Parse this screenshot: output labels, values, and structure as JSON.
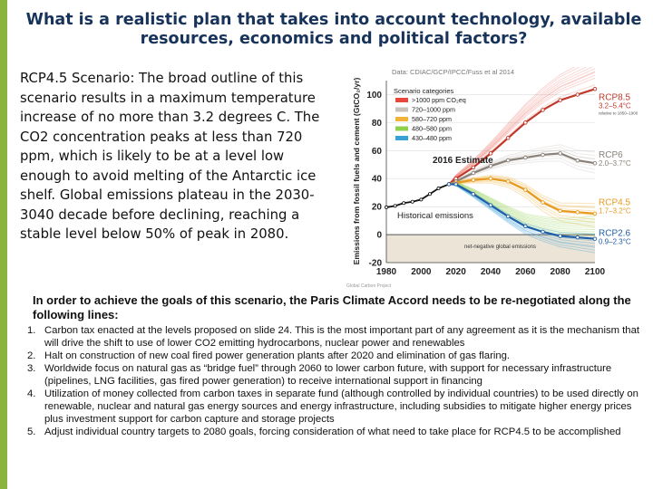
{
  "slide": {
    "title": "What is a realistic plan that takes into account technology, available resources, economics and political factors?",
    "intro": "RCP4.5 Scenario: The broad outline of this scenario results in a maximum temperature increase of no more than 3.2 degrees C.  The CO2 concentration peaks at less than 720 ppm, which is likely to be at a level low enough to avoid melting of the Antarctic ice shelf. Global emissions plateau in the 2030-3040 decade before declining, reaching a stable level below 50% of peak in 2080.",
    "lead": "In order to achieve the goals of this scenario, the Paris Climate Accord needs to be re-negotiated along the following lines:",
    "items": [
      {
        "num": "1.",
        "text": "Carbon tax enacted at the levels proposed on slide 24.  This is the most important part of any agreement as it is the mechanism that will drive the shift to use of lower CO2 emitting hydrocarbons, nuclear power and renewables"
      },
      {
        "num": "2.",
        "text": "Halt on construction of new coal fired power generation plants after 2020 and elimination of gas flaring."
      },
      {
        "num": "3.",
        "text": "Worldwide focus on natural gas as “bridge fuel” through 2060 to lower carbon future, with support  for necessary infrastructure (pipelines, LNG facilities, gas fired power generation) to receive international support in financing"
      },
      {
        "num": "4.",
        "text": "Utilization of money collected from carbon taxes in separate fund (although controlled by individual countries) to be used directly on renewable, nuclear and natural gas energy sources and energy infrastructure, including subsidies to mitigate higher energy prices plus investment support for carbon capture and storage projects"
      },
      {
        "num": "5.",
        "text": "Adjust individual country targets to 2080 goals, forcing consideration of what need to take place for RCP4.5 to be accomplished"
      }
    ]
  },
  "chart_data": {
    "type": "line",
    "source": "Data: CDIAC/GCP/IPCC/Fuss et al 2014",
    "ylabel": "Emissions from fossil fuels and cement (GtCO₂/yr)",
    "xlim": [
      1980,
      2100
    ],
    "ylim": [
      -20,
      110
    ],
    "x_ticks": [
      1980,
      2000,
      2020,
      2040,
      2060,
      2080,
      2100
    ],
    "y_ticks": [
      -20,
      0,
      20,
      40,
      60,
      80,
      100
    ],
    "legend_title": "Scenario categories",
    "legend": [
      {
        "label": ">1000 ppm CO₂eq",
        "color": "#e8473c"
      },
      {
        "label": "720–1000 ppm",
        "color": "#c9c2bc"
      },
      {
        "label": "580–720 ppm",
        "color": "#f2b33d"
      },
      {
        "label": "480–580 ppm",
        "color": "#8fd14f"
      },
      {
        "label": "430–480 ppm",
        "color": "#3aa0d8"
      }
    ],
    "annotations": {
      "estimate": "2016 Estimate",
      "historical": "Historical emissions",
      "negative": "net-negative global emissions",
      "footer": "Global Carbon Project"
    },
    "historical": {
      "x": [
        1980,
        1985,
        1990,
        1995,
        2000,
        2005,
        2010,
        2016
      ],
      "y": [
        19.5,
        20.5,
        22.5,
        23.5,
        25,
        29,
        33,
        36
      ]
    },
    "series": [
      {
        "name": "RCP8.5",
        "range": "3.2–5.4°C",
        "range_note": "relative to 1850–1900",
        "color": "#c0392b",
        "x": [
          2016,
          2020,
          2030,
          2040,
          2050,
          2060,
          2070,
          2080,
          2090,
          2100
        ],
        "y": [
          36,
          40,
          48,
          58,
          69,
          80,
          89,
          96,
          100,
          104
        ]
      },
      {
        "name": "RCP6",
        "range": "2.0–3.7°C",
        "color": "#8a8178",
        "x": [
          2016,
          2020,
          2030,
          2040,
          2050,
          2060,
          2070,
          2080,
          2090,
          2100
        ],
        "y": [
          36,
          38,
          44,
          49,
          53,
          55,
          57,
          58,
          53,
          51
        ]
      },
      {
        "name": "RCP4.5",
        "range": "1.7–3.2°C",
        "color": "#e89a1f",
        "x": [
          2016,
          2020,
          2030,
          2040,
          2050,
          2060,
          2070,
          2080,
          2090,
          2100
        ],
        "y": [
          36,
          37,
          39,
          40,
          38,
          32,
          23,
          17,
          16,
          15
        ]
      },
      {
        "name": "RCP2.6",
        "range": "0.9–2.3°C",
        "color": "#1f5fa8",
        "x": [
          2016,
          2020,
          2030,
          2040,
          2050,
          2060,
          2070,
          2080,
          2090,
          2100
        ],
        "y": [
          36,
          36,
          29,
          21,
          13,
          6,
          2,
          -1,
          -2,
          -3
        ]
      }
    ]
  }
}
